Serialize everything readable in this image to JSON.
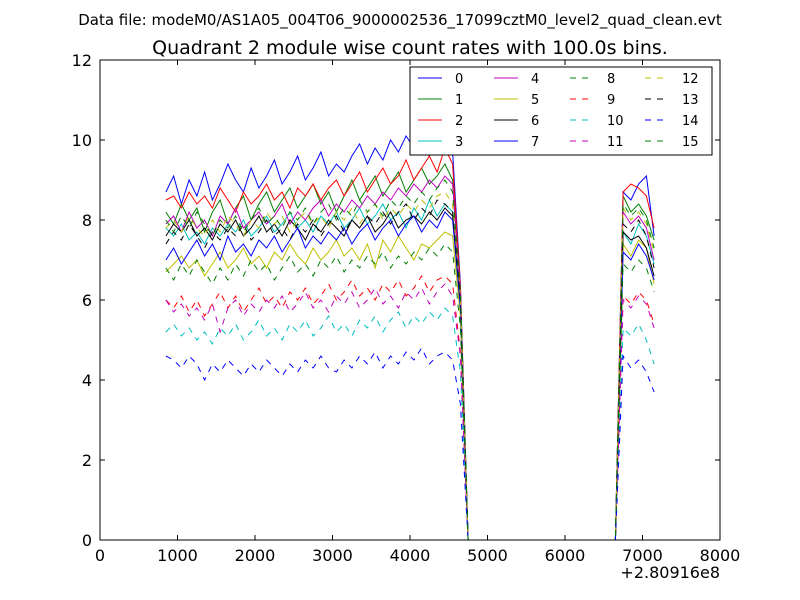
{
  "chart_data": {
    "type": "line",
    "suptitle": "Data file: modeM0/AS1A05_004T06_9000002536_17099cztM0_level2_quad_clean.evt",
    "title": "Quadrant 2 module wise count rates with 100.0s bins.",
    "xlabel": "",
    "ylabel": "",
    "xlim": [
      0,
      8000
    ],
    "ylim": [
      0,
      12
    ],
    "x_offset_label": "+2.80916e8",
    "xticks": [
      0,
      1000,
      2000,
      3000,
      4000,
      5000,
      6000,
      7000,
      8000
    ],
    "yticks": [
      0,
      2,
      4,
      6,
      8,
      10,
      12
    ],
    "legend_position": "top-right",
    "x_segments": [
      [
        850,
        950,
        1050,
        1150,
        1250,
        1350,
        1450,
        1550,
        1650,
        1750,
        1850,
        1950,
        2050,
        2150,
        2250,
        2350,
        2450,
        2550,
        2650,
        2750,
        2850,
        2950,
        3050,
        3150,
        3250,
        3350,
        3450,
        3550,
        3650,
        3750,
        3850,
        3950,
        4050,
        4150,
        4250,
        4350,
        4450,
        4550,
        4650,
        4750,
        4850,
        4950,
        5050,
        5150,
        5250,
        5350,
        5450,
        5550,
        5650,
        5750,
        5850,
        5950,
        6050,
        6150,
        6250,
        6350,
        6450,
        6550,
        6650,
        6750,
        6850,
        6950,
        7050,
        7150
      ]
    ],
    "series": [
      {
        "name": "0",
        "color": "#0000ff",
        "dash": "solid",
        "values": [
          8.7,
          9.1,
          8.4,
          9.0,
          8.6,
          9.2,
          8.5,
          8.9,
          9.4,
          9.0,
          8.7,
          9.3,
          8.8,
          9.1,
          9.5,
          8.9,
          9.2,
          9.6,
          9.0,
          9.3,
          9.7,
          9.1,
          9.4,
          9.2,
          9.6,
          9.9,
          9.4,
          9.8,
          9.5,
          10.0,
          9.7,
          10.1,
          9.8,
          10.0,
          9.6,
          9.9,
          10.0,
          9.7,
          6.4,
          0,
          0,
          0,
          0,
          0,
          0,
          0,
          0,
          0,
          0,
          0,
          0,
          0,
          0,
          0,
          0,
          0,
          0,
          0,
          0,
          8.7,
          8.5,
          8.9,
          9.1,
          7.6
        ]
      },
      {
        "name": "1",
        "color": "#008000",
        "dash": "solid",
        "values": [
          8.2,
          7.9,
          8.4,
          8.0,
          8.3,
          7.7,
          8.2,
          8.5,
          7.9,
          8.3,
          8.6,
          8.0,
          8.4,
          8.7,
          8.2,
          8.5,
          8.8,
          8.3,
          8.6,
          8.9,
          8.4,
          8.7,
          8.2,
          8.6,
          9.0,
          8.5,
          8.8,
          9.1,
          8.6,
          8.9,
          9.2,
          8.7,
          9.0,
          9.3,
          8.9,
          9.1,
          9.4,
          9.0,
          6.2,
          0,
          0,
          0,
          0,
          0,
          0,
          0,
          0,
          0,
          0,
          0,
          0,
          0,
          0,
          0,
          0,
          0,
          0,
          0,
          0,
          8.6,
          8.2,
          8.4,
          8.1,
          7.5
        ]
      },
      {
        "name": "2",
        "color": "#ff0000",
        "dash": "solid",
        "values": [
          8.5,
          8.6,
          8.3,
          8.7,
          8.4,
          8.6,
          8.3,
          8.8,
          8.5,
          8.2,
          8.7,
          8.4,
          8.6,
          8.9,
          8.5,
          8.7,
          8.3,
          8.8,
          8.6,
          8.9,
          8.5,
          8.8,
          9.0,
          8.6,
          8.9,
          9.2,
          8.7,
          9.0,
          9.3,
          8.9,
          9.1,
          9.5,
          9.0,
          9.3,
          9.6,
          9.2,
          9.8,
          9.4,
          6.3,
          0,
          0,
          0,
          0,
          0,
          0,
          0,
          0,
          0,
          0,
          0,
          0,
          0,
          0,
          0,
          0,
          0,
          0,
          0,
          0,
          8.7,
          8.9,
          8.8,
          8.6,
          7.8
        ]
      },
      {
        "name": "3",
        "color": "#00bfbf",
        "dash": "solid",
        "values": [
          7.8,
          7.6,
          7.9,
          7.5,
          7.7,
          7.4,
          7.8,
          7.6,
          7.9,
          7.7,
          8.0,
          7.6,
          7.8,
          8.1,
          7.7,
          7.9,
          8.2,
          7.8,
          8.0,
          7.7,
          8.1,
          7.9,
          8.2,
          7.8,
          8.0,
          8.3,
          7.9,
          8.1,
          8.4,
          8.0,
          8.2,
          7.8,
          8.3,
          8.0,
          8.5,
          8.1,
          8.4,
          8.2,
          6.0,
          0,
          0,
          0,
          0,
          0,
          0,
          0,
          0,
          0,
          0,
          0,
          0,
          0,
          0,
          0,
          0,
          0,
          0,
          0,
          0,
          7.7,
          7.4,
          7.9,
          7.6,
          6.9
        ]
      },
      {
        "name": "4",
        "color": "#bf00bf",
        "dash": "solid",
        "values": [
          7.9,
          8.1,
          7.7,
          8.2,
          7.8,
          8.0,
          7.6,
          8.1,
          7.9,
          8.3,
          7.8,
          8.0,
          8.2,
          7.9,
          8.1,
          8.4,
          7.9,
          8.2,
          8.0,
          8.3,
          8.5,
          8.1,
          8.4,
          8.2,
          8.5,
          8.3,
          8.6,
          8.4,
          8.7,
          8.5,
          8.8,
          8.6,
          8.9,
          8.7,
          9.0,
          8.8,
          9.1,
          8.9,
          6.1,
          0,
          0,
          0,
          0,
          0,
          0,
          0,
          0,
          0,
          0,
          0,
          0,
          0,
          0,
          0,
          0,
          0,
          0,
          0,
          0,
          8.2,
          7.9,
          8.1,
          7.8,
          7.0
        ]
      },
      {
        "name": "5",
        "color": "#bfbf00",
        "dash": "solid",
        "values": [
          6.7,
          6.9,
          7.1,
          6.8,
          7.0,
          6.6,
          6.9,
          7.2,
          6.8,
          7.0,
          7.3,
          6.9,
          7.1,
          6.8,
          7.2,
          7.0,
          7.4,
          7.1,
          6.9,
          7.3,
          7.0,
          7.2,
          7.5,
          7.1,
          7.3,
          7.0,
          7.4,
          6.8,
          7.5,
          7.2,
          7.6,
          7.3,
          7.0,
          7.4,
          7.3,
          7.5,
          7.7,
          7.6,
          5.6,
          0,
          0,
          0,
          0,
          0,
          0,
          0,
          0,
          0,
          0,
          0,
          0,
          0,
          0,
          0,
          0,
          0,
          0,
          0,
          0,
          7.4,
          7.1,
          7.5,
          7.3,
          6.4
        ]
      },
      {
        "name": "6",
        "color": "#000000",
        "dash": "solid",
        "values": [
          7.6,
          7.9,
          7.7,
          8.0,
          7.6,
          7.8,
          7.5,
          7.9,
          7.7,
          8.0,
          7.6,
          7.8,
          8.1,
          7.7,
          7.9,
          7.6,
          8.0,
          7.8,
          7.5,
          7.9,
          7.7,
          8.0,
          7.8,
          7.6,
          8.0,
          7.8,
          8.1,
          7.7,
          7.9,
          8.2,
          7.8,
          8.0,
          8.1,
          7.9,
          8.2,
          8.0,
          8.3,
          8.1,
          5.9,
          0,
          0,
          0,
          0,
          0,
          0,
          0,
          0,
          0,
          0,
          0,
          0,
          0,
          0,
          0,
          0,
          0,
          0,
          0,
          0,
          7.7,
          7.5,
          7.6,
          7.3,
          6.6
        ]
      },
      {
        "name": "7",
        "color": "#0000ff",
        "dash": "solid",
        "values": [
          7.0,
          7.3,
          6.9,
          7.2,
          7.5,
          7.1,
          7.4,
          7.0,
          7.6,
          7.2,
          7.4,
          7.1,
          7.5,
          7.3,
          7.6,
          7.2,
          7.5,
          7.8,
          7.3,
          7.6,
          7.4,
          7.7,
          7.5,
          7.8,
          7.4,
          7.7,
          7.9,
          7.5,
          7.8,
          8.0,
          7.6,
          7.9,
          8.1,
          7.7,
          8.0,
          7.8,
          8.2,
          8.0,
          5.8,
          0,
          0,
          0,
          0,
          0,
          0,
          0,
          0,
          0,
          0,
          0,
          0,
          0,
          0,
          0,
          0,
          0,
          0,
          0,
          0,
          7.2,
          7.0,
          7.4,
          7.1,
          6.5
        ]
      },
      {
        "name": "8",
        "color": "#008000",
        "dash": "dashed",
        "values": [
          6.8,
          6.5,
          6.9,
          6.6,
          7.0,
          6.7,
          6.4,
          6.8,
          6.5,
          6.9,
          6.6,
          7.0,
          6.7,
          6.9,
          6.5,
          6.8,
          7.1,
          6.7,
          6.9,
          6.6,
          7.0,
          6.8,
          7.1,
          6.7,
          7.0,
          6.8,
          7.1,
          6.9,
          7.2,
          6.8,
          7.1,
          6.9,
          7.2,
          7.0,
          7.3,
          7.1,
          7.4,
          7.2,
          5.3,
          0,
          0,
          0,
          0,
          0,
          0,
          0,
          0,
          0,
          0,
          0,
          0,
          0,
          0,
          0,
          0,
          0,
          0,
          0,
          0,
          6.9,
          6.7,
          7.0,
          6.8,
          6.2
        ]
      },
      {
        "name": "9",
        "color": "#ff0000",
        "dash": "dashed",
        "values": [
          6.0,
          5.8,
          6.1,
          5.7,
          6.0,
          5.6,
          5.9,
          6.2,
          5.8,
          6.1,
          5.7,
          6.0,
          6.3,
          5.9,
          6.1,
          5.8,
          6.2,
          6.0,
          6.3,
          5.9,
          6.1,
          6.4,
          6.0,
          6.2,
          6.5,
          6.1,
          6.3,
          6.0,
          6.4,
          6.2,
          6.5,
          6.1,
          6.3,
          6.6,
          6.2,
          6.5,
          6.6,
          6.4,
          4.7,
          0,
          0,
          0,
          0,
          0,
          0,
          0,
          0,
          0,
          0,
          0,
          0,
          0,
          0,
          0,
          0,
          0,
          0,
          0,
          0,
          6.1,
          5.9,
          6.2,
          6.0,
          5.4
        ]
      },
      {
        "name": "10",
        "color": "#00bfbf",
        "dash": "dashed",
        "values": [
          5.2,
          5.4,
          5.1,
          5.3,
          5.0,
          5.2,
          4.9,
          5.3,
          5.1,
          5.4,
          5.0,
          5.2,
          5.5,
          5.1,
          5.3,
          5.0,
          5.4,
          5.2,
          5.5,
          5.1,
          5.3,
          5.6,
          5.2,
          5.4,
          5.1,
          5.5,
          5.3,
          5.6,
          5.2,
          5.5,
          5.7,
          5.3,
          5.6,
          5.4,
          5.7,
          5.5,
          5.8,
          5.6,
          4.2,
          0,
          0,
          0,
          0,
          0,
          0,
          0,
          0,
          0,
          0,
          0,
          0,
          0,
          0,
          0,
          0,
          0,
          0,
          0,
          0,
          5.3,
          5.1,
          5.4,
          5.0,
          4.4
        ]
      },
      {
        "name": "11",
        "color": "#bf00bf",
        "dash": "dashed",
        "values": [
          6.0,
          5.7,
          5.9,
          5.6,
          5.8,
          5.5,
          5.9,
          5.2,
          5.8,
          6.0,
          5.6,
          5.9,
          5.7,
          6.0,
          5.8,
          6.1,
          5.7,
          5.9,
          6.2,
          5.8,
          6.0,
          5.7,
          6.1,
          5.9,
          6.2,
          5.8,
          6.0,
          6.3,
          5.9,
          6.1,
          5.8,
          6.2,
          6.0,
          6.3,
          5.9,
          6.2,
          6.4,
          6.1,
          4.6,
          0,
          0,
          0,
          0,
          0,
          0,
          0,
          0,
          0,
          0,
          0,
          0,
          0,
          0,
          0,
          0,
          0,
          0,
          0,
          0,
          6.0,
          5.8,
          6.1,
          5.9,
          5.3
        ]
      },
      {
        "name": "12",
        "color": "#bfbf00",
        "dash": "dashed",
        "values": [
          7.8,
          8.0,
          7.7,
          8.1,
          7.8,
          7.6,
          8.0,
          7.7,
          8.1,
          7.9,
          7.6,
          8.0,
          7.8,
          8.2,
          7.9,
          8.1,
          7.7,
          8.0,
          8.2,
          7.9,
          8.1,
          7.8,
          8.2,
          8.0,
          8.3,
          7.9,
          8.2,
          8.4,
          8.0,
          8.3,
          8.1,
          8.4,
          8.2,
          8.5,
          8.3,
          8.6,
          8.7,
          8.4,
          6.1,
          0,
          0,
          0,
          0,
          0,
          0,
          0,
          0,
          0,
          0,
          0,
          0,
          0,
          0,
          0,
          0,
          0,
          0,
          0,
          0,
          8.3,
          8.0,
          8.2,
          7.9,
          7.2
        ]
      },
      {
        "name": "13",
        "color": "#000000",
        "dash": "dashed",
        "values": [
          7.4,
          7.7,
          7.5,
          7.9,
          7.6,
          7.3,
          7.7,
          7.5,
          7.8,
          7.6,
          7.9,
          7.5,
          7.7,
          8.0,
          7.6,
          7.8,
          7.5,
          7.9,
          7.7,
          8.0,
          7.6,
          7.9,
          8.1,
          7.7,
          8.0,
          7.8,
          8.1,
          7.9,
          8.2,
          7.9,
          8.2,
          8.4,
          8.0,
          8.3,
          8.1,
          8.5,
          8.4,
          8.2,
          6.0,
          0,
          0,
          0,
          0,
          0,
          0,
          0,
          0,
          0,
          0,
          0,
          0,
          0,
          0,
          0,
          0,
          0,
          0,
          0,
          0,
          7.9,
          7.7,
          8.0,
          7.6,
          6.8
        ]
      },
      {
        "name": "14",
        "color": "#0000ff",
        "dash": "dashed",
        "values": [
          4.6,
          4.5,
          4.3,
          4.6,
          4.4,
          4.0,
          4.4,
          4.2,
          4.5,
          4.3,
          4.1,
          4.4,
          4.2,
          4.5,
          4.3,
          4.1,
          4.4,
          4.2,
          4.5,
          4.3,
          4.6,
          4.3,
          4.2,
          4.5,
          4.3,
          4.6,
          4.4,
          4.7,
          4.3,
          4.6,
          4.4,
          4.7,
          4.5,
          4.8,
          4.4,
          4.6,
          4.7,
          4.5,
          3.4,
          0,
          0,
          0,
          0,
          0,
          0,
          0,
          0,
          0,
          0,
          0,
          0,
          0,
          0,
          0,
          0,
          0,
          0,
          0,
          0,
          4.6,
          4.3,
          4.5,
          4.2,
          3.7
        ]
      },
      {
        "name": "15",
        "color": "#008000",
        "dash": "dashed",
        "values": [
          8.0,
          7.7,
          8.1,
          7.8,
          8.2,
          7.9,
          7.6,
          8.0,
          7.8,
          8.1,
          7.7,
          8.0,
          8.3,
          7.9,
          8.1,
          7.8,
          8.2,
          8.0,
          8.3,
          7.9,
          8.2,
          8.4,
          8.0,
          8.3,
          8.1,
          8.5,
          8.2,
          8.4,
          8.1,
          8.5,
          8.3,
          8.6,
          8.4,
          8.7,
          8.5,
          8.8,
          9.0,
          8.7,
          6.2,
          0,
          0,
          0,
          0,
          0,
          0,
          0,
          0,
          0,
          0,
          0,
          0,
          0,
          0,
          0,
          0,
          0,
          0,
          0,
          0,
          8.4,
          8.1,
          8.3,
          8.0,
          7.3
        ]
      }
    ]
  }
}
